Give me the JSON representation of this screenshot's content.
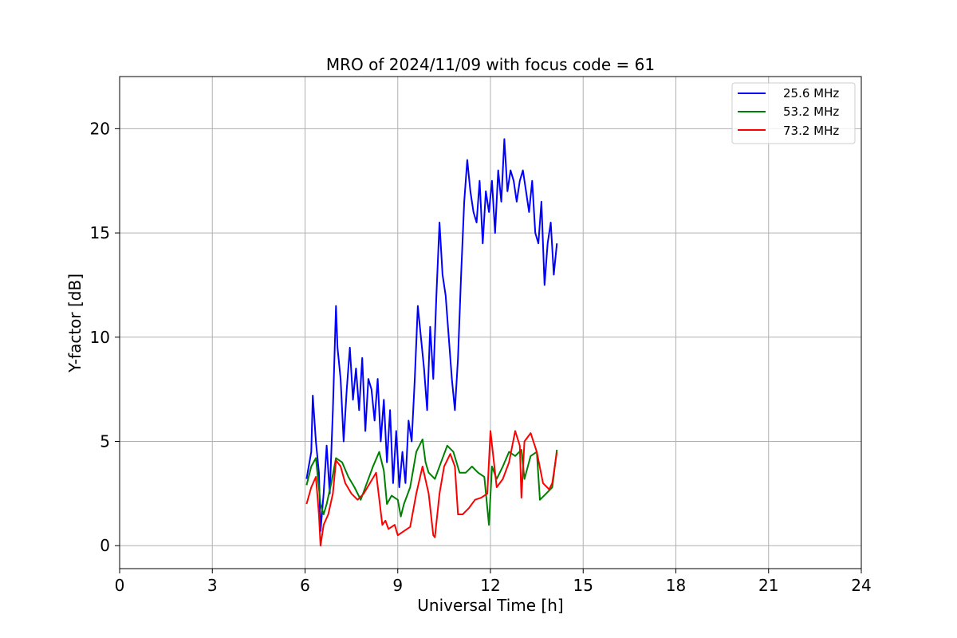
{
  "chart_data": {
    "type": "line",
    "title": "MRO of 2024/11/09 with focus code = 61",
    "xlabel": "Universal Time [h]",
    "ylabel": "Y-factor [dB]",
    "xlim": [
      0,
      24
    ],
    "ylim": [
      -1.1,
      22.5
    ],
    "xticks": [
      0,
      3,
      6,
      9,
      12,
      15,
      18,
      21,
      24
    ],
    "yticks": [
      0,
      5,
      10,
      15,
      20
    ],
    "grid": true,
    "legend_position": "top-right",
    "series": [
      {
        "name": "25.6 MHz",
        "color": "#0000ff",
        "x": [
          6.05,
          6.2,
          6.25,
          6.35,
          6.45,
          6.5,
          6.6,
          6.7,
          6.8,
          6.9,
          7.0,
          7.05,
          7.15,
          7.25,
          7.35,
          7.45,
          7.55,
          7.65,
          7.75,
          7.85,
          7.95,
          8.05,
          8.15,
          8.25,
          8.35,
          8.45,
          8.55,
          8.65,
          8.75,
          8.85,
          8.95,
          9.05,
          9.15,
          9.25,
          9.35,
          9.45,
          9.55,
          9.65,
          9.75,
          9.85,
          9.95,
          10.05,
          10.15,
          10.25,
          10.35,
          10.45,
          10.55,
          10.65,
          10.75,
          10.85,
          10.95,
          11.05,
          11.15,
          11.25,
          11.35,
          11.45,
          11.55,
          11.65,
          11.75,
          11.85,
          11.95,
          12.05,
          12.15,
          12.25,
          12.35,
          12.45,
          12.55,
          12.65,
          12.75,
          12.85,
          12.95,
          13.05,
          13.15,
          13.25,
          13.35,
          13.45,
          13.55,
          13.65,
          13.75,
          13.85,
          13.95,
          14.05,
          14.15
        ],
        "y": [
          3.2,
          4.5,
          7.2,
          5.0,
          3.5,
          0.7,
          2.5,
          4.8,
          2.5,
          6.5,
          11.5,
          9.5,
          8.0,
          5.0,
          7.5,
          9.5,
          7.0,
          8.5,
          6.5,
          9.0,
          5.5,
          8.0,
          7.5,
          6.0,
          8.0,
          5.0,
          7.0,
          4.0,
          6.5,
          3.0,
          5.5,
          2.8,
          4.5,
          3.0,
          6.0,
          5.0,
          8.0,
          11.5,
          10.0,
          8.5,
          6.5,
          10.5,
          8.0,
          12.0,
          15.5,
          13.0,
          12.0,
          10.0,
          8.0,
          6.5,
          9.0,
          13.0,
          16.5,
          18.5,
          17.0,
          16.0,
          15.5,
          17.5,
          14.5,
          17.0,
          16.0,
          17.5,
          15.0,
          18.0,
          16.5,
          19.5,
          17.0,
          18.0,
          17.5,
          16.5,
          17.5,
          18.0,
          17.0,
          16.0,
          17.5,
          15.0,
          14.5,
          16.5,
          12.5,
          14.5,
          15.5,
          13.0,
          14.5
        ]
      },
      {
        "name": "53.2 MHz",
        "color": "#008000",
        "x": [
          6.05,
          6.2,
          6.35,
          6.5,
          6.6,
          6.7,
          6.85,
          7.0,
          7.2,
          7.4,
          7.6,
          7.8,
          8.0,
          8.2,
          8.4,
          8.55,
          8.65,
          8.8,
          9.0,
          9.1,
          9.2,
          9.4,
          9.6,
          9.8,
          9.9,
          10.0,
          10.2,
          10.4,
          10.6,
          10.8,
          11.0,
          11.2,
          11.4,
          11.6,
          11.8,
          11.95,
          12.05,
          12.2,
          12.4,
          12.6,
          12.8,
          13.0,
          13.1,
          13.3,
          13.5,
          13.6,
          13.8,
          14.0,
          14.15
        ],
        "y": [
          2.9,
          3.8,
          4.2,
          2.0,
          1.5,
          2.0,
          3.0,
          4.2,
          4.0,
          3.3,
          2.8,
          2.2,
          3.0,
          3.8,
          4.5,
          3.6,
          2.0,
          2.4,
          2.2,
          1.4,
          2.0,
          2.8,
          4.5,
          5.1,
          4.0,
          3.5,
          3.2,
          4.0,
          4.8,
          4.5,
          3.5,
          3.5,
          3.8,
          3.5,
          3.3,
          1.0,
          3.8,
          3.2,
          3.8,
          4.5,
          4.3,
          4.6,
          3.2,
          4.3,
          4.5,
          2.2,
          2.5,
          2.8,
          4.6
        ]
      },
      {
        "name": "73.2 MHz",
        "color": "#ff0000",
        "x": [
          6.05,
          6.2,
          6.35,
          6.45,
          6.5,
          6.6,
          6.75,
          6.9,
          7.0,
          7.15,
          7.3,
          7.5,
          7.7,
          7.9,
          8.1,
          8.3,
          8.5,
          8.6,
          8.7,
          8.9,
          9.0,
          9.2,
          9.4,
          9.6,
          9.8,
          10.0,
          10.15,
          10.2,
          10.35,
          10.5,
          10.7,
          10.85,
          10.95,
          11.1,
          11.3,
          11.5,
          11.7,
          11.9,
          12.0,
          12.2,
          12.4,
          12.6,
          12.8,
          12.95,
          13.0,
          13.1,
          13.3,
          13.5,
          13.7,
          13.9,
          14.0,
          14.15
        ],
        "y": [
          2.0,
          2.8,
          3.3,
          1.5,
          0.0,
          1.0,
          1.5,
          2.5,
          4.1,
          3.8,
          3.0,
          2.5,
          2.2,
          2.5,
          3.0,
          3.5,
          1.0,
          1.2,
          0.8,
          1.0,
          0.5,
          0.7,
          0.9,
          2.5,
          3.8,
          2.5,
          0.5,
          0.4,
          2.5,
          3.8,
          4.4,
          3.8,
          1.5,
          1.5,
          1.8,
          2.2,
          2.3,
          2.5,
          5.5,
          2.8,
          3.2,
          4.0,
          5.5,
          4.8,
          2.3,
          5.0,
          5.4,
          4.5,
          3.0,
          2.7,
          3.0,
          4.5
        ]
      }
    ]
  }
}
